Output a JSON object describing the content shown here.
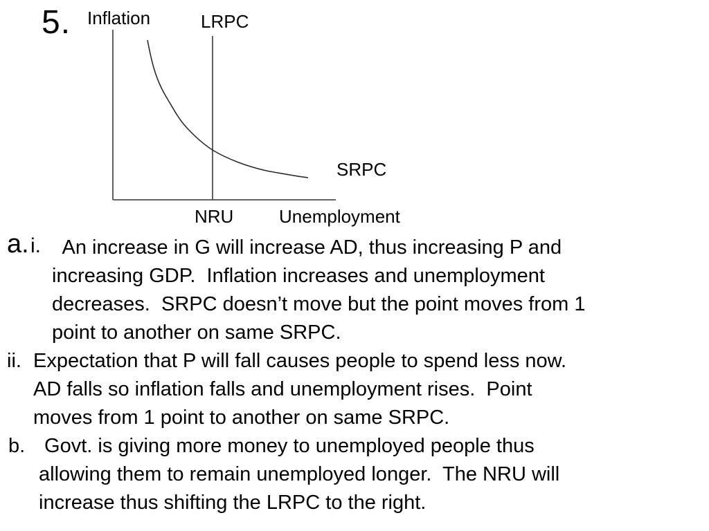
{
  "question_number": "5.",
  "diagram": {
    "y_axis_label": "Inflation",
    "x_axis_label": "Unemployment",
    "x_axis_tick": "NRU",
    "curve_labels": {
      "lrpc": "LRPC",
      "srpc": "SRPC"
    },
    "colors": {
      "axis": "#4d4d4d",
      "lrpc_line": "#4d4d4d",
      "curve": "#2a2a2a",
      "text": "#000000"
    }
  },
  "answers": [
    {
      "marker": "a.",
      "sub_marker": "i.",
      "lines": [
        "  An increase in G will increase AD, thus increasing P and",
        "increasing GDP.  Inflation increases and unemployment",
        "decreases.  SRPC doesn’t move but the point moves from 1",
        "point to another on same SRPC."
      ]
    },
    {
      "marker": "ii.",
      "lines": [
        "Expectation that P will fall causes people to spend less now.",
        "AD falls so inflation falls and unemployment rises.  Point",
        "moves from 1 point to another on same SRPC."
      ]
    },
    {
      "marker": "b.",
      "lines": [
        " Govt. is giving more money to unemployed people thus",
        "allowing them to remain unemployed longer.  The NRU will",
        "increase thus shifting the LRPC to the right."
      ]
    }
  ]
}
